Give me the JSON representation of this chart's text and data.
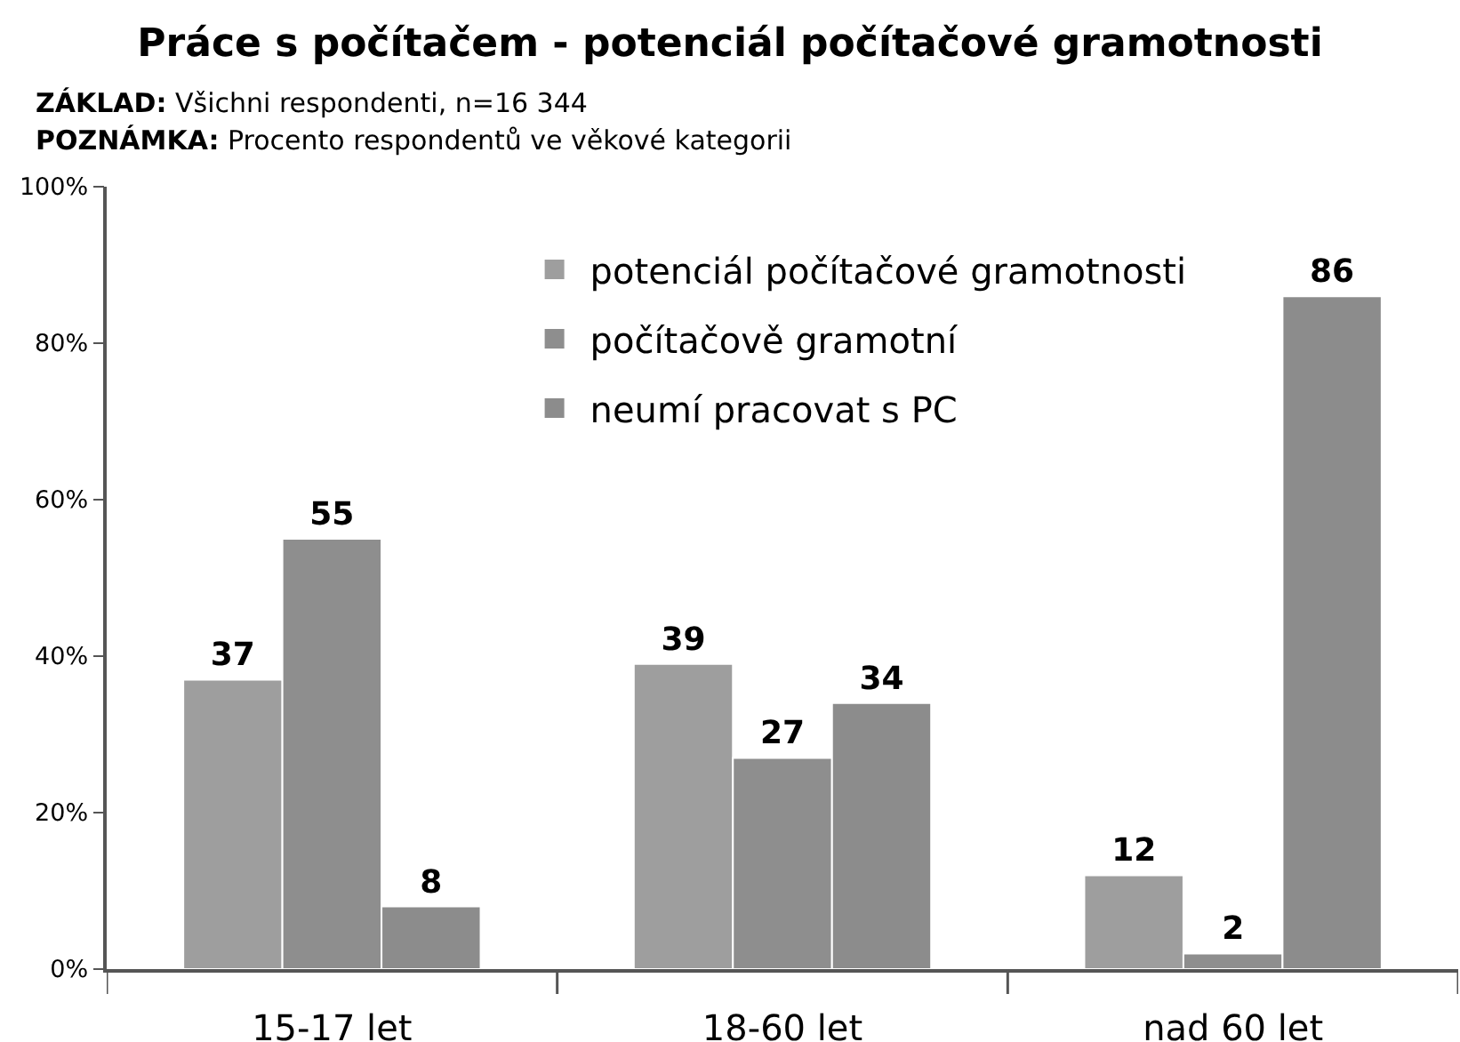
{
  "chart_data": {
    "type": "bar",
    "title": "Práce s počítačem - potenciál počítačové gramotnosti",
    "annotations": [
      "ZÁKLAD: Všichni respondenti, n=16 344",
      "POZNÁMKA: Procento respondentů ve věkové kategorii"
    ],
    "categories": [
      "15-17 let",
      "18-60 let",
      "nad 60 let"
    ],
    "series": [
      {
        "name": "potenciál počítačové gramotnosti",
        "color": "#9e9e9e",
        "values": [
          37,
          39,
          12
        ]
      },
      {
        "name": "počítačově gramotní",
        "color": "#8e8e8e",
        "values": [
          55,
          27,
          2
        ]
      },
      {
        "name": "neumí pracovat s PC",
        "color": "#8c8c8c",
        "values": [
          8,
          34,
          86
        ]
      }
    ],
    "ylim": [
      0,
      100
    ],
    "yticks": [
      {
        "value": 0,
        "label": "0%"
      },
      {
        "value": 20,
        "label": "20%"
      },
      {
        "value": 40,
        "label": "40%"
      },
      {
        "value": 60,
        "label": "60%"
      },
      {
        "value": 80,
        "label": "80%"
      },
      {
        "value": 100,
        "label": "100%"
      }
    ],
    "data_labels": true,
    "grid": false,
    "legend": "top right"
  }
}
